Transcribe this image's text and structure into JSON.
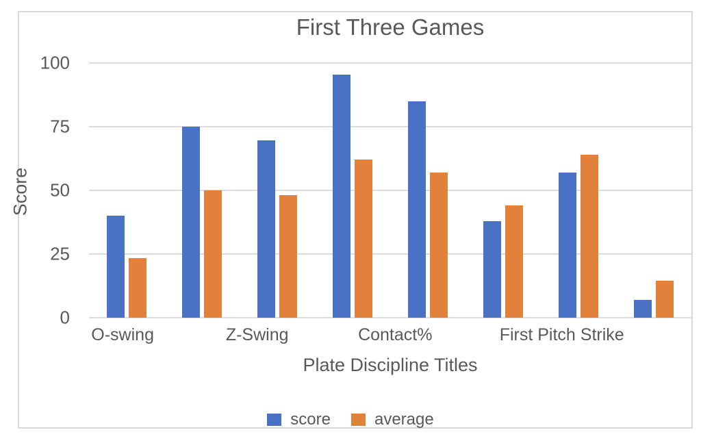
{
  "chart_data": {
    "type": "bar",
    "title": "First Three Games",
    "xlabel": "Plate Discipline Titles",
    "ylabel": "Score",
    "categories": [
      "O-swing",
      "",
      "Z-Swing",
      "",
      "Contact%",
      "",
      "First Pitch Strike",
      ""
    ],
    "visible_category_labels": [
      "O-swing",
      "Z-Swing",
      "Contact%",
      "First Pitch Strike"
    ],
    "series": [
      {
        "name": "score",
        "color": "#4a72c4",
        "values": [
          40,
          75,
          69.5,
          95.5,
          85,
          38,
          57,
          7
        ]
      },
      {
        "name": "average",
        "color": "#e2813c",
        "values": [
          23.5,
          50,
          48,
          62,
          57,
          44,
          64,
          14.5
        ]
      }
    ],
    "ylim": [
      0,
      100
    ],
    "yticks": [
      0,
      25,
      50,
      75,
      100
    ],
    "grid": true,
    "legend_position": "bottom",
    "colors": {
      "grid": "#dcdcdc",
      "text": "#595959",
      "border": "#d9d9d9",
      "background": "#ffffff"
    }
  }
}
